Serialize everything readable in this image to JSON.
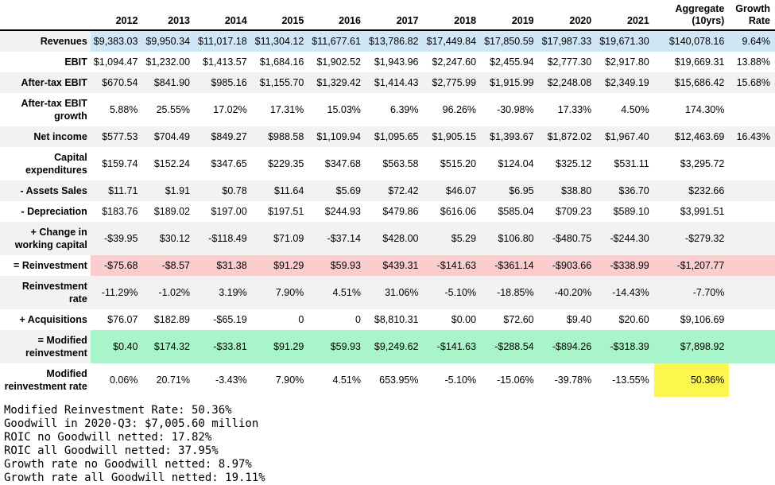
{
  "chart_data": {
    "type": "table",
    "columns": [
      "2012",
      "2013",
      "2014",
      "2015",
      "2016",
      "2017",
      "2018",
      "2019",
      "2020",
      "2021",
      "Aggregate (10yrs)",
      "Growth Rate"
    ],
    "rows": [
      {
        "label": "Revenues",
        "stripe": true,
        "data_bg": "blue",
        "cells": [
          "$9,383.03",
          "$9,950.34",
          "$11,017.18",
          "$11,304.12",
          "$11,677.61",
          "$13,786.82",
          "$17,449.84",
          "$17,850.59",
          "$17,987.33",
          "$19,671.30",
          "$140,078.16",
          "9.64%"
        ]
      },
      {
        "label": "EBIT",
        "stripe": false,
        "data_bg": null,
        "cells": [
          "$1,094.47",
          "$1,232.00",
          "$1,413.57",
          "$1,684.16",
          "$1,902.52",
          "$1,943.96",
          "$2,247.60",
          "$2,455.94",
          "$2,777.30",
          "$2,917.80",
          "$19,669.31",
          "13.88%"
        ]
      },
      {
        "label": "After-tax EBIT",
        "stripe": true,
        "data_bg": null,
        "cells": [
          "$670.54",
          "$841.90",
          "$985.16",
          "$1,155.70",
          "$1,329.42",
          "$1,414.43",
          "$2,775.99",
          "$1,915.99",
          "$2,248.08",
          "$2,349.19",
          "$15,686.42",
          "15.68%"
        ]
      },
      {
        "label": "After-tax EBIT growth",
        "stripe": false,
        "data_bg": null,
        "cells": [
          "5.88%",
          "25.55%",
          "17.02%",
          "17.31%",
          "15.03%",
          "6.39%",
          "96.26%",
          "-30.98%",
          "17.33%",
          "4.50%",
          "174.30%",
          ""
        ]
      },
      {
        "label": "Net income",
        "stripe": true,
        "data_bg": null,
        "cells": [
          "$577.53",
          "$704.49",
          "$849.27",
          "$988.58",
          "$1,109.94",
          "$1,095.65",
          "$1,905.15",
          "$1,393.67",
          "$1,872.02",
          "$1,967.40",
          "$12,463.69",
          "16.43%"
        ]
      },
      {
        "label": "Capital expenditures",
        "stripe": false,
        "data_bg": null,
        "cells": [
          "$159.74",
          "$152.24",
          "$347.65",
          "$229.35",
          "$347.68",
          "$563.58",
          "$515.20",
          "$124.04",
          "$325.12",
          "$531.11",
          "$3,295.72",
          ""
        ]
      },
      {
        "label": "- Assets Sales",
        "stripe": true,
        "data_bg": null,
        "cells": [
          "$11.71",
          "$1.91",
          "$0.78",
          "$11.64",
          "$5.69",
          "$72.42",
          "$46.07",
          "$6.95",
          "$38.80",
          "$36.70",
          "$232.66",
          ""
        ]
      },
      {
        "label": "- Depreciation",
        "stripe": false,
        "data_bg": null,
        "cells": [
          "$183.76",
          "$189.02",
          "$197.00",
          "$197.51",
          "$244.93",
          "$479.86",
          "$616.06",
          "$585.04",
          "$709.23",
          "$589.10",
          "$3,991.51",
          ""
        ]
      },
      {
        "label": "+ Change in working capital",
        "stripe": true,
        "data_bg": null,
        "cells": [
          "-$39.95",
          "$30.12",
          "-$118.49",
          "$71.09",
          "-$37.14",
          "$428.00",
          "$5.29",
          "$106.80",
          "-$480.75",
          "-$244.30",
          "-$279.32",
          ""
        ]
      },
      {
        "label": "= Reinvestment",
        "stripe": false,
        "data_bg": "pink",
        "cells": [
          "-$75.68",
          "-$8.57",
          "$31.38",
          "$91.29",
          "$59.93",
          "$439.31",
          "-$141.63",
          "-$361.14",
          "-$903.66",
          "-$338.99",
          "-$1,207.77",
          ""
        ]
      },
      {
        "label": "Reinvestment rate",
        "stripe": true,
        "data_bg": null,
        "cells": [
          "-11.29%",
          "-1.02%",
          "3.19%",
          "7.90%",
          "4.51%",
          "31.06%",
          "-5.10%",
          "-18.85%",
          "-40.20%",
          "-14.43%",
          "-7.70%",
          ""
        ]
      },
      {
        "label": "+ Acquisitions",
        "stripe": false,
        "data_bg": null,
        "cells": [
          "$76.07",
          "$182.89",
          "-$65.19",
          "0",
          "0",
          "$8,810.31",
          "$0.00",
          "$72.60",
          "$9.40",
          "$20.60",
          "$9,106.69",
          ""
        ]
      },
      {
        "label": "= Modified reinvestment",
        "stripe": true,
        "data_bg": "green",
        "cells": [
          "$0.40",
          "$174.32",
          "-$33.81",
          "$91.29",
          "$59.93",
          "$9,249.62",
          "-$141.63",
          "-$288.54",
          "-$894.26",
          "-$318.39",
          "$7,898.92",
          ""
        ]
      },
      {
        "label": "Modified reinvestment rate",
        "stripe": false,
        "data_bg": null,
        "highlight_cell": 10,
        "highlight": "yellow",
        "cells": [
          "0.06%",
          "20.71%",
          "-3.43%",
          "7.90%",
          "4.51%",
          "653.95%",
          "-5.10%",
          "-15.06%",
          "-39.78%",
          "-13.55%",
          "50.36%",
          ""
        ]
      }
    ]
  },
  "footer": {
    "lines": [
      "Modified Reinvestment Rate: 50.36%",
      "Goodwill in 2020-Q3: $7,005.60 million",
      "ROIC no Goodwill netted: 17.82%",
      "ROIC all Goodwill netted: 37.95%",
      "Growth rate no Goodwill netted: 8.97%",
      "Growth rate all Goodwill netted: 19.11%"
    ]
  },
  "colors": {
    "stripe": "#f2f2f2",
    "white": "#ffffff",
    "blue": "#cfe6f5",
    "pink": "#fccdcd",
    "green": "#a8f5c9",
    "yellow": "#fdf64d"
  }
}
